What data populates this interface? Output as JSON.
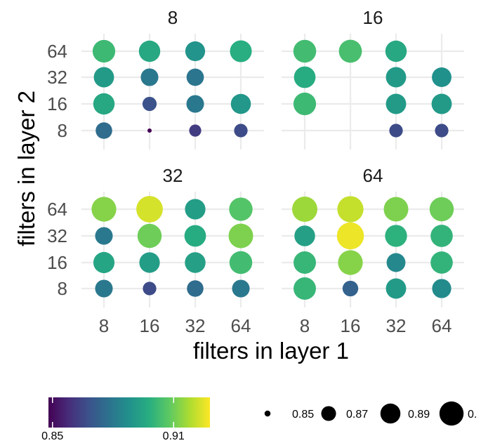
{
  "chart_data": {
    "type": "scatter",
    "xlabel": "filters in layer 1",
    "ylabel": "filters in layer 2",
    "x_categories": [
      "8",
      "16",
      "32",
      "64"
    ],
    "y_categories": [
      "8",
      "16",
      "32",
      "64"
    ],
    "facets": [
      {
        "label": "8",
        "points": [
          {
            "x": "8",
            "y": "64",
            "value": 0.902
          },
          {
            "x": "16",
            "y": "64",
            "value": 0.896
          },
          {
            "x": "32",
            "y": "64",
            "value": 0.889
          },
          {
            "x": "64",
            "y": "64",
            "value": 0.898
          },
          {
            "x": "8",
            "y": "32",
            "value": 0.891
          },
          {
            "x": "16",
            "y": "32",
            "value": 0.88
          },
          {
            "x": "32",
            "y": "32",
            "value": 0.879
          },
          {
            "x": "8",
            "y": "16",
            "value": 0.896
          },
          {
            "x": "16",
            "y": "16",
            "value": 0.868
          },
          {
            "x": "32",
            "y": "16",
            "value": 0.88
          },
          {
            "x": "64",
            "y": "16",
            "value": 0.89
          },
          {
            "x": "8",
            "y": "8",
            "value": 0.876
          },
          {
            "x": "16",
            "y": "8",
            "value": 0.848
          },
          {
            "x": "32",
            "y": "8",
            "value": 0.862
          },
          {
            "x": "64",
            "y": "8",
            "value": 0.866
          }
        ]
      },
      {
        "label": "16",
        "points": [
          {
            "x": "8",
            "y": "64",
            "value": 0.903
          },
          {
            "x": "16",
            "y": "64",
            "value": 0.904
          },
          {
            "x": "32",
            "y": "64",
            "value": 0.896
          },
          {
            "x": "8",
            "y": "32",
            "value": 0.897
          },
          {
            "x": "32",
            "y": "32",
            "value": 0.891
          },
          {
            "x": "64",
            "y": "32",
            "value": 0.888
          },
          {
            "x": "8",
            "y": "16",
            "value": 0.902
          },
          {
            "x": "32",
            "y": "16",
            "value": 0.891
          },
          {
            "x": "64",
            "y": "16",
            "value": 0.891
          },
          {
            "x": "32",
            "y": "8",
            "value": 0.866
          },
          {
            "x": "64",
            "y": "8",
            "value": 0.866
          }
        ]
      },
      {
        "label": "32",
        "points": [
          {
            "x": "8",
            "y": "64",
            "value": 0.913
          },
          {
            "x": "16",
            "y": "64",
            "value": 0.923
          },
          {
            "x": "32",
            "y": "64",
            "value": 0.892
          },
          {
            "x": "64",
            "y": "64",
            "value": 0.906
          },
          {
            "x": "8",
            "y": "32",
            "value": 0.88
          },
          {
            "x": "16",
            "y": "32",
            "value": 0.91
          },
          {
            "x": "32",
            "y": "32",
            "value": 0.897
          },
          {
            "x": "64",
            "y": "32",
            "value": 0.912
          },
          {
            "x": "8",
            "y": "16",
            "value": 0.895
          },
          {
            "x": "16",
            "y": "16",
            "value": 0.892
          },
          {
            "x": "32",
            "y": "16",
            "value": 0.893
          },
          {
            "x": "64",
            "y": "16",
            "value": 0.903
          },
          {
            "x": "8",
            "y": "8",
            "value": 0.88
          },
          {
            "x": "16",
            "y": "8",
            "value": 0.866
          },
          {
            "x": "32",
            "y": "8",
            "value": 0.876
          },
          {
            "x": "64",
            "y": "8",
            "value": 0.88
          }
        ]
      },
      {
        "label": "64",
        "points": [
          {
            "x": "8",
            "y": "64",
            "value": 0.916
          },
          {
            "x": "16",
            "y": "64",
            "value": 0.921
          },
          {
            "x": "32",
            "y": "64",
            "value": 0.912
          },
          {
            "x": "64",
            "y": "64",
            "value": 0.91
          },
          {
            "x": "8",
            "y": "32",
            "value": 0.893
          },
          {
            "x": "16",
            "y": "32",
            "value": 0.926
          },
          {
            "x": "32",
            "y": "32",
            "value": 0.899
          },
          {
            "x": "64",
            "y": "32",
            "value": 0.9
          },
          {
            "x": "8",
            "y": "16",
            "value": 0.901
          },
          {
            "x": "16",
            "y": "16",
            "value": 0.913
          },
          {
            "x": "32",
            "y": "16",
            "value": 0.885
          },
          {
            "x": "64",
            "y": "16",
            "value": 0.9
          },
          {
            "x": "8",
            "y": "8",
            "value": 0.901
          },
          {
            "x": "16",
            "y": "8",
            "value": 0.873
          },
          {
            "x": "32",
            "y": "8",
            "value": 0.891
          },
          {
            "x": "64",
            "y": "8",
            "value": 0.886
          }
        ]
      }
    ],
    "color_legend": {
      "min": 0.848,
      "max": 0.928,
      "ticks": [
        {
          "label": "0.85",
          "value": 0.85
        },
        {
          "label": "0.91",
          "value": 0.91
        }
      ]
    },
    "size_legend": {
      "entries": [
        {
          "label": "0.85",
          "value": 0.85
        },
        {
          "label": "0.87",
          "value": 0.87
        },
        {
          "label": "0.89",
          "value": 0.89
        },
        {
          "label": "0.",
          "value": 0.91
        }
      ]
    },
    "colors": {
      "grid": "#ebebeb",
      "background": "#ffffff"
    }
  }
}
